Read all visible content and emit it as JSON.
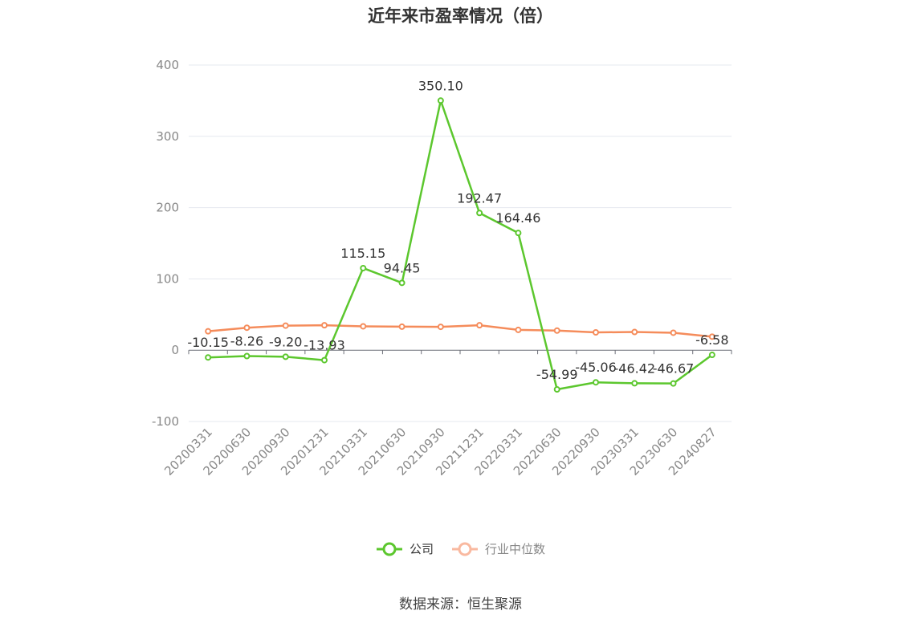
{
  "chart_data": {
    "type": "line",
    "title": "近年来市盈率情况（倍）",
    "categories": [
      "20200331",
      "20200630",
      "20200930",
      "20201231",
      "20210331",
      "20210630",
      "20210930",
      "20211231",
      "20220331",
      "20220630",
      "20220930",
      "20230331",
      "20230630",
      "20240827"
    ],
    "series": [
      {
        "name": "公司",
        "color": "#5cc72e",
        "values": [
          -10.15,
          -8.26,
          -9.2,
          -13.93,
          115.15,
          94.45,
          350.1,
          192.47,
          164.46,
          -54.99,
          -45.06,
          -46.42,
          -46.67,
          -6.58
        ],
        "labels": [
          "-10.15",
          "-8.26",
          "-9.20",
          "-13.93",
          "115.15",
          "94.45",
          "350.10",
          "192.47",
          "164.46",
          "-54.99",
          "-45.06",
          "-46.42",
          "-46.67",
          "-6.58"
        ]
      },
      {
        "name": "行业中位数",
        "color": "#f58c5b",
        "values": [
          26.5,
          31.5,
          34.5,
          35.0,
          33.5,
          33.0,
          32.8,
          35.0,
          28.5,
          27.5,
          25.0,
          25.5,
          24.5,
          19.0
        ]
      }
    ],
    "ylim": [
      -100,
      400
    ],
    "yticks": [
      -100,
      0,
      100,
      200,
      300,
      400
    ],
    "grid": true,
    "legend_position": "bottom"
  },
  "legend": {
    "company": "公司",
    "industry": "行业中位数"
  },
  "source": "数据来源：恒生聚源"
}
